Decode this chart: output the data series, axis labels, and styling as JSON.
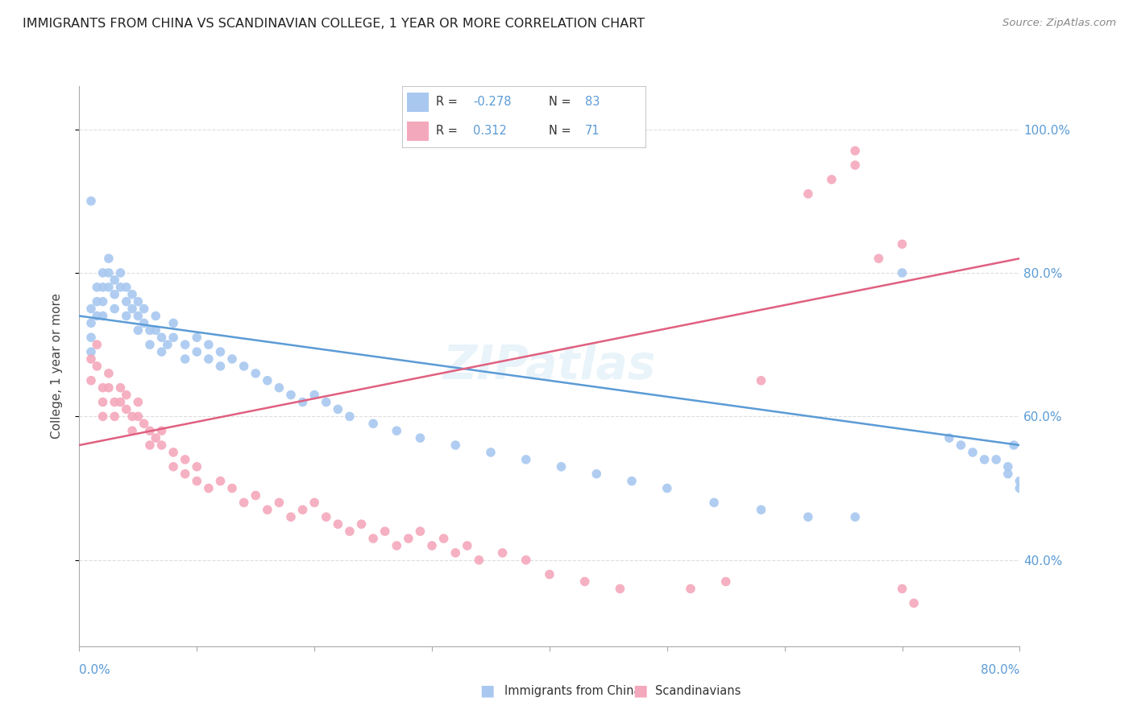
{
  "title": "IMMIGRANTS FROM CHINA VS SCANDINAVIAN COLLEGE, 1 YEAR OR MORE CORRELATION CHART",
  "source": "Source: ZipAtlas.com",
  "ylabel": "College, 1 year or more",
  "legend_label1": "Immigrants from China",
  "legend_label2": "Scandinavians",
  "R1": -0.278,
  "N1": 83,
  "R2": 0.312,
  "N2": 71,
  "color_blue": "#A8C8F0",
  "color_pink": "#F4A8BC",
  "line_color_blue": "#5B9BD5",
  "line_color_pink": "#E06080",
  "bg_color": "#FFFFFF",
  "grid_color": "#DDDDDD",
  "xmin": 0.0,
  "xmax": 0.8,
  "ymin": 0.28,
  "ymax": 1.06,
  "blue_x": [
    0.01,
    0.01,
    0.01,
    0.01,
    0.015,
    0.015,
    0.015,
    0.02,
    0.02,
    0.02,
    0.02,
    0.025,
    0.025,
    0.025,
    0.03,
    0.03,
    0.03,
    0.035,
    0.035,
    0.04,
    0.04,
    0.04,
    0.045,
    0.045,
    0.05,
    0.05,
    0.05,
    0.055,
    0.055,
    0.06,
    0.06,
    0.065,
    0.065,
    0.07,
    0.07,
    0.075,
    0.08,
    0.08,
    0.09,
    0.09,
    0.1,
    0.1,
    0.11,
    0.11,
    0.12,
    0.12,
    0.13,
    0.14,
    0.15,
    0.16,
    0.17,
    0.18,
    0.19,
    0.2,
    0.21,
    0.22,
    0.23,
    0.25,
    0.27,
    0.29,
    0.32,
    0.35,
    0.38,
    0.41,
    0.44,
    0.47,
    0.5,
    0.54,
    0.58,
    0.62,
    0.66,
    0.7,
    0.74,
    0.75,
    0.76,
    0.77,
    0.78,
    0.79,
    0.79,
    0.8,
    0.8,
    0.795,
    0.01
  ],
  "blue_y": [
    0.75,
    0.73,
    0.71,
    0.69,
    0.78,
    0.76,
    0.74,
    0.8,
    0.78,
    0.76,
    0.74,
    0.82,
    0.8,
    0.78,
    0.79,
    0.77,
    0.75,
    0.8,
    0.78,
    0.78,
    0.76,
    0.74,
    0.77,
    0.75,
    0.76,
    0.74,
    0.72,
    0.75,
    0.73,
    0.72,
    0.7,
    0.74,
    0.72,
    0.71,
    0.69,
    0.7,
    0.73,
    0.71,
    0.7,
    0.68,
    0.71,
    0.69,
    0.7,
    0.68,
    0.69,
    0.67,
    0.68,
    0.67,
    0.66,
    0.65,
    0.64,
    0.63,
    0.62,
    0.63,
    0.62,
    0.61,
    0.6,
    0.59,
    0.58,
    0.57,
    0.56,
    0.55,
    0.54,
    0.53,
    0.52,
    0.51,
    0.5,
    0.48,
    0.47,
    0.46,
    0.46,
    0.8,
    0.57,
    0.56,
    0.55,
    0.54,
    0.54,
    0.53,
    0.52,
    0.51,
    0.5,
    0.56,
    0.9
  ],
  "pink_x": [
    0.01,
    0.01,
    0.015,
    0.015,
    0.02,
    0.02,
    0.02,
    0.025,
    0.025,
    0.03,
    0.03,
    0.035,
    0.035,
    0.04,
    0.04,
    0.045,
    0.045,
    0.05,
    0.05,
    0.055,
    0.06,
    0.06,
    0.065,
    0.07,
    0.07,
    0.08,
    0.08,
    0.09,
    0.09,
    0.1,
    0.1,
    0.11,
    0.12,
    0.13,
    0.14,
    0.15,
    0.16,
    0.17,
    0.18,
    0.19,
    0.2,
    0.21,
    0.22,
    0.23,
    0.24,
    0.25,
    0.26,
    0.27,
    0.28,
    0.29,
    0.3,
    0.31,
    0.32,
    0.33,
    0.34,
    0.36,
    0.38,
    0.4,
    0.43,
    0.46,
    0.52,
    0.55,
    0.58,
    0.62,
    0.64,
    0.66,
    0.66,
    0.68,
    0.7,
    0.7,
    0.71
  ],
  "pink_y": [
    0.68,
    0.65,
    0.7,
    0.67,
    0.64,
    0.62,
    0.6,
    0.66,
    0.64,
    0.62,
    0.6,
    0.64,
    0.62,
    0.63,
    0.61,
    0.6,
    0.58,
    0.62,
    0.6,
    0.59,
    0.58,
    0.56,
    0.57,
    0.58,
    0.56,
    0.55,
    0.53,
    0.54,
    0.52,
    0.53,
    0.51,
    0.5,
    0.51,
    0.5,
    0.48,
    0.49,
    0.47,
    0.48,
    0.46,
    0.47,
    0.48,
    0.46,
    0.45,
    0.44,
    0.45,
    0.43,
    0.44,
    0.42,
    0.43,
    0.44,
    0.42,
    0.43,
    0.41,
    0.42,
    0.4,
    0.41,
    0.4,
    0.38,
    0.37,
    0.36,
    0.36,
    0.37,
    0.65,
    0.91,
    0.93,
    0.95,
    0.97,
    0.82,
    0.84,
    0.36,
    0.34
  ],
  "blue_line_x": [
    0.0,
    0.8
  ],
  "blue_line_y": [
    0.74,
    0.56
  ],
  "pink_line_x": [
    0.0,
    0.8
  ],
  "pink_line_y": [
    0.56,
    0.82
  ]
}
